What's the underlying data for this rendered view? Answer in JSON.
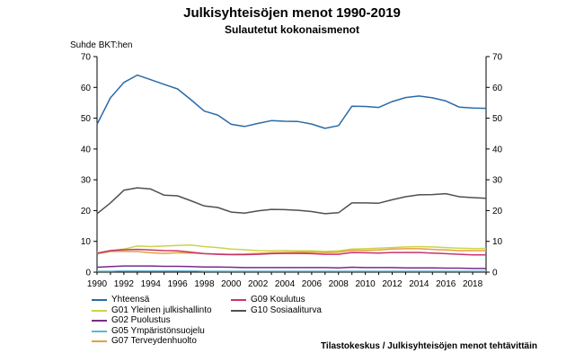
{
  "chart_data": {
    "type": "line",
    "title": "Julkisyhteisöjen menot 1990-2019",
    "subtitle": "Sulautetut kokonaismenot",
    "ylabel": "Suhde BKT:hen",
    "source": "Tilastokeskus / Julkisyhteisöjen menot tehtävittäin",
    "ylim": [
      0,
      70
    ],
    "yticks": [
      "0",
      "10",
      "20",
      "30",
      "40",
      "50",
      "60",
      "70"
    ],
    "xticks": [
      "1990",
      "1992",
      "1994",
      "1996",
      "1998",
      "2000",
      "2002",
      "2004",
      "2006",
      "2008",
      "2010",
      "2012",
      "2014",
      "2016",
      "2018"
    ],
    "x": [
      1990,
      1991,
      1992,
      1993,
      1994,
      1995,
      1996,
      1997,
      1998,
      1999,
      2000,
      2001,
      2002,
      2003,
      2004,
      2005,
      2006,
      2007,
      2008,
      2009,
      2010,
      2011,
      2012,
      2013,
      2014,
      2015,
      2016,
      2017,
      2018,
      2019
    ],
    "grid": false,
    "series": [
      {
        "name": "Yhteensä",
        "color": "#2b6aa8",
        "values": [
          48.0,
          56.6,
          61.6,
          64.0,
          62.5,
          61.0,
          59.5,
          56.0,
          52.3,
          51.0,
          48.0,
          47.3,
          48.3,
          49.2,
          49.0,
          48.9,
          48.1,
          46.7,
          47.6,
          53.9,
          53.8,
          53.5,
          55.4,
          56.7,
          57.2,
          56.6,
          55.6,
          53.6,
          53.3,
          53.2
        ]
      },
      {
        "name": "G01 Yleinen julkishallinto",
        "color": "#cfd24a",
        "values": [
          6.3,
          7.0,
          7.5,
          8.5,
          8.3,
          8.5,
          8.7,
          8.8,
          8.3,
          8.0,
          7.5,
          7.3,
          7.0,
          6.9,
          7.0,
          6.9,
          6.9,
          6.7,
          6.9,
          7.5,
          7.6,
          7.8,
          8.0,
          8.2,
          8.3,
          8.2,
          8.0,
          7.8,
          7.7,
          7.7
        ]
      },
      {
        "name": "G02 Puolustus",
        "color": "#7b2a8a",
        "values": [
          1.6,
          1.8,
          2.0,
          2.0,
          2.0,
          1.9,
          1.9,
          1.8,
          1.7,
          1.7,
          1.6,
          1.5,
          1.5,
          1.5,
          1.5,
          1.5,
          1.5,
          1.5,
          1.4,
          1.6,
          1.5,
          1.5,
          1.5,
          1.4,
          1.4,
          1.4,
          1.3,
          1.3,
          1.2,
          1.2
        ]
      },
      {
        "name": "G05 Ympäristönsuojelu",
        "color": "#5fb6d0",
        "values": [
          0.3,
          0.3,
          0.4,
          0.4,
          0.4,
          0.4,
          0.4,
          0.4,
          0.3,
          0.3,
          0.3,
          0.3,
          0.3,
          0.3,
          0.3,
          0.3,
          0.3,
          0.3,
          0.3,
          0.3,
          0.3,
          0.3,
          0.3,
          0.3,
          0.3,
          0.3,
          0.3,
          0.3,
          0.3,
          0.3
        ]
      },
      {
        "name": "G07 Terveydenhuolto",
        "color": "#e2a23a",
        "values": [
          6.0,
          6.7,
          6.8,
          6.7,
          6.3,
          6.1,
          6.3,
          6.2,
          6.0,
          5.9,
          5.8,
          5.9,
          6.1,
          6.3,
          6.4,
          6.5,
          6.5,
          6.4,
          6.5,
          7.1,
          7.1,
          7.2,
          7.5,
          7.6,
          7.6,
          7.4,
          7.2,
          7.0,
          7.0,
          7.0
        ]
      },
      {
        "name": "G09 Koulutus",
        "color": "#c8346e",
        "values": [
          6.1,
          7.0,
          7.3,
          7.4,
          7.2,
          7.0,
          6.9,
          6.5,
          6.0,
          5.8,
          5.7,
          5.7,
          5.8,
          6.0,
          6.1,
          6.1,
          6.0,
          5.8,
          5.8,
          6.4,
          6.3,
          6.2,
          6.4,
          6.4,
          6.4,
          6.2,
          6.0,
          5.8,
          5.6,
          5.6
        ]
      },
      {
        "name": "G10 Sosiaaliturva",
        "color": "#505050",
        "values": [
          19.0,
          22.5,
          26.6,
          27.4,
          27.0,
          25.0,
          24.8,
          23.2,
          21.5,
          21.0,
          19.5,
          19.2,
          19.9,
          20.4,
          20.3,
          20.1,
          19.7,
          19.0,
          19.3,
          22.5,
          22.5,
          22.4,
          23.5,
          24.5,
          25.1,
          25.2,
          25.5,
          24.5,
          24.2,
          24.0
        ]
      }
    ]
  }
}
